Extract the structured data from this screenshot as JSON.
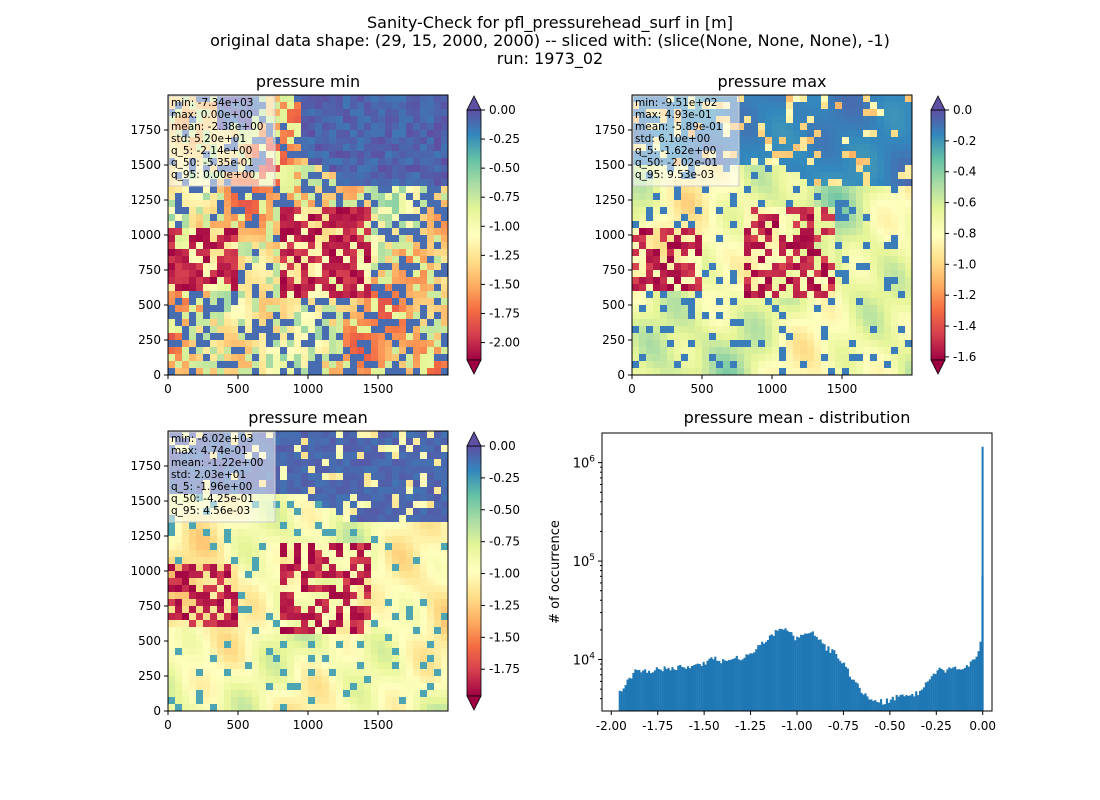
{
  "figure": {
    "title_lines": [
      "Sanity-Check for pfl_pressurehead_surf in [m]",
      "original data shape: (29, 15, 2000, 2000) -- sliced with: (slice(None, None, None), -1)",
      "run: 1973_02"
    ]
  },
  "chart_data": [
    {
      "type": "heatmap",
      "title": "pressure min",
      "xticks": [
        "0",
        "500",
        "1000",
        "1500"
      ],
      "yticks": [
        "0",
        "250",
        "500",
        "750",
        "1000",
        "1250",
        "1500",
        "1750"
      ],
      "xlim": [
        0,
        2000
      ],
      "ylim": [
        0,
        2000
      ],
      "colorbar": {
        "ticks": [
          "0.00",
          "-0.25",
          "-0.50",
          "-0.75",
          "-1.00",
          "-1.25",
          "-1.50",
          "-1.75",
          "-2.00"
        ],
        "range": [
          -2.15,
          0.0
        ],
        "extend": "both",
        "cmap": "Spectral"
      },
      "stats": [
        "min: -7.34e+03",
        "max: 0.00e+00",
        "mean: -2.38e+00",
        "std: 5.20e+01",
        "q_5: -2.14e+00",
        "q_50: -5.35e-01",
        "q_95: 0.00e+00"
      ]
    },
    {
      "type": "heatmap",
      "title": "pressure max",
      "xticks": [
        "0",
        "500",
        "1000",
        "1500"
      ],
      "yticks": [
        "0",
        "250",
        "500",
        "750",
        "1000",
        "1250",
        "1500",
        "1750"
      ],
      "xlim": [
        0,
        2000
      ],
      "ylim": [
        0,
        2000
      ],
      "colorbar": {
        "ticks": [
          "0.0",
          "-0.2",
          "-0.4",
          "-0.6",
          "-0.8",
          "-1.0",
          "-1.2",
          "-1.4",
          "-1.6"
        ],
        "range": [
          -1.62,
          0.0
        ],
        "extend": "both",
        "cmap": "Spectral"
      },
      "stats": [
        "min: -9.51e+02",
        "max: 4.93e-01",
        "mean: -5.89e-01",
        "std: 6.10e+00",
        "q_5: -1.62e+00",
        "q_50: -2.02e-01",
        "q_95: 9.53e-03"
      ]
    },
    {
      "type": "heatmap",
      "title": "pressure mean",
      "xticks": [
        "0",
        "500",
        "1000",
        "1500"
      ],
      "yticks": [
        "0",
        "250",
        "500",
        "750",
        "1000",
        "1250",
        "1500",
        "1750"
      ],
      "xlim": [
        0,
        2000
      ],
      "ylim": [
        0,
        2000
      ],
      "colorbar": {
        "ticks": [
          "0.00",
          "-0.25",
          "-0.50",
          "-0.75",
          "-1.00",
          "-1.25",
          "-1.50",
          "-1.75"
        ],
        "range": [
          -1.96,
          0.0
        ],
        "extend": "both",
        "cmap": "Spectral"
      },
      "stats": [
        "min: -6.02e+03",
        "max: 4.74e-01",
        "mean: -1.22e+00",
        "std: 2.03e+01",
        "q_5: -1.96e+00",
        "q_50: -4.25e-01",
        "q_95: 4.56e-03"
      ]
    },
    {
      "type": "bar",
      "title": "pressure mean - distribution",
      "ylabel": "# of occurrence",
      "xlabel": "",
      "yscale": "log",
      "xlim": [
        -2.05,
        0.05
      ],
      "ylim": [
        3000,
        2000000
      ],
      "xticks": [
        "-2.00",
        "-1.75",
        "-1.50",
        "-1.25",
        "-1.00",
        "-0.75",
        "-0.50",
        "-0.25",
        "0.00"
      ],
      "xtick_values": [
        -2.0,
        -1.75,
        -1.5,
        -1.25,
        -1.0,
        -0.75,
        -0.5,
        -0.25,
        0.0
      ],
      "yticks": [
        {
          "base": "10",
          "exp": "4",
          "value": 10000
        },
        {
          "base": "10",
          "exp": "5",
          "value": 100000
        },
        {
          "base": "10",
          "exp": "6",
          "value": 1000000
        }
      ],
      "bar_color": "#1f77b4",
      "bins": {
        "x": [
          -1.96,
          -1.875,
          -1.8,
          -1.75,
          -1.7,
          -1.6,
          -1.5,
          -1.45,
          -1.4,
          -1.3,
          -1.25,
          -1.2,
          -1.15,
          -1.1,
          -1.05,
          -1.0,
          -0.95,
          -0.9,
          -0.85,
          -0.8,
          -0.75,
          -0.7,
          -0.65,
          -0.6,
          -0.55,
          -0.5,
          -0.45,
          -0.4,
          -0.35,
          -0.3,
          -0.25,
          -0.2,
          -0.15,
          -0.1,
          -0.05,
          -0.02,
          -0.01,
          0.0
        ],
        "y": [
          4800,
          7500,
          7400,
          8000,
          8200,
          8500,
          9200,
          10500,
          9500,
          10500,
          11600,
          14500,
          17500,
          20500,
          19000,
          16000,
          19500,
          17500,
          13000,
          12000,
          9000,
          6000,
          4600,
          3800,
          3700,
          3900,
          4200,
          4300,
          4700,
          5800,
          7800,
          7900,
          8500,
          8000,
          9800,
          13000,
          20000,
          1450000
        ]
      }
    }
  ]
}
